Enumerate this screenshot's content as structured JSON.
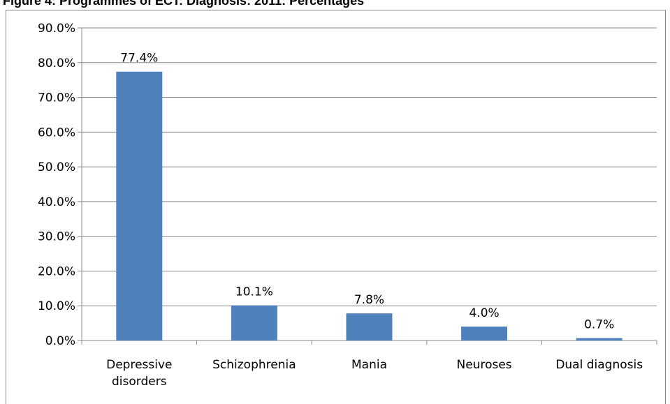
{
  "chart_data": {
    "type": "bar",
    "title": "Figure 4: Programmes of ECT: Diagnosis: 2011: Percentages",
    "categories": [
      "Depressive disorders",
      "Schizophrenia",
      "Mania",
      "Neuroses",
      "Dual diagnosis"
    ],
    "values": [
      77.4,
      10.1,
      7.8,
      4.0,
      0.7
    ],
    "value_labels": [
      "77.4%",
      "10.1%",
      "7.8%",
      "4.0%",
      "0.7%"
    ],
    "color": "#4f81bd",
    "ylim": [
      0,
      90
    ],
    "yticks": [
      {
        "value": 0,
        "label": "0.0%"
      },
      {
        "value": 10,
        "label": "10.0%"
      },
      {
        "value": 20,
        "label": "20.0%"
      },
      {
        "value": 30,
        "label": "30.0%"
      },
      {
        "value": 40,
        "label": "40.0%"
      },
      {
        "value": 50,
        "label": "50.0%"
      },
      {
        "value": 60,
        "label": "60.0%"
      },
      {
        "value": 70,
        "label": "70.0%"
      },
      {
        "value": 80,
        "label": "80.0%"
      },
      {
        "value": 90,
        "label": "90.0%"
      }
    ],
    "grid": true
  }
}
